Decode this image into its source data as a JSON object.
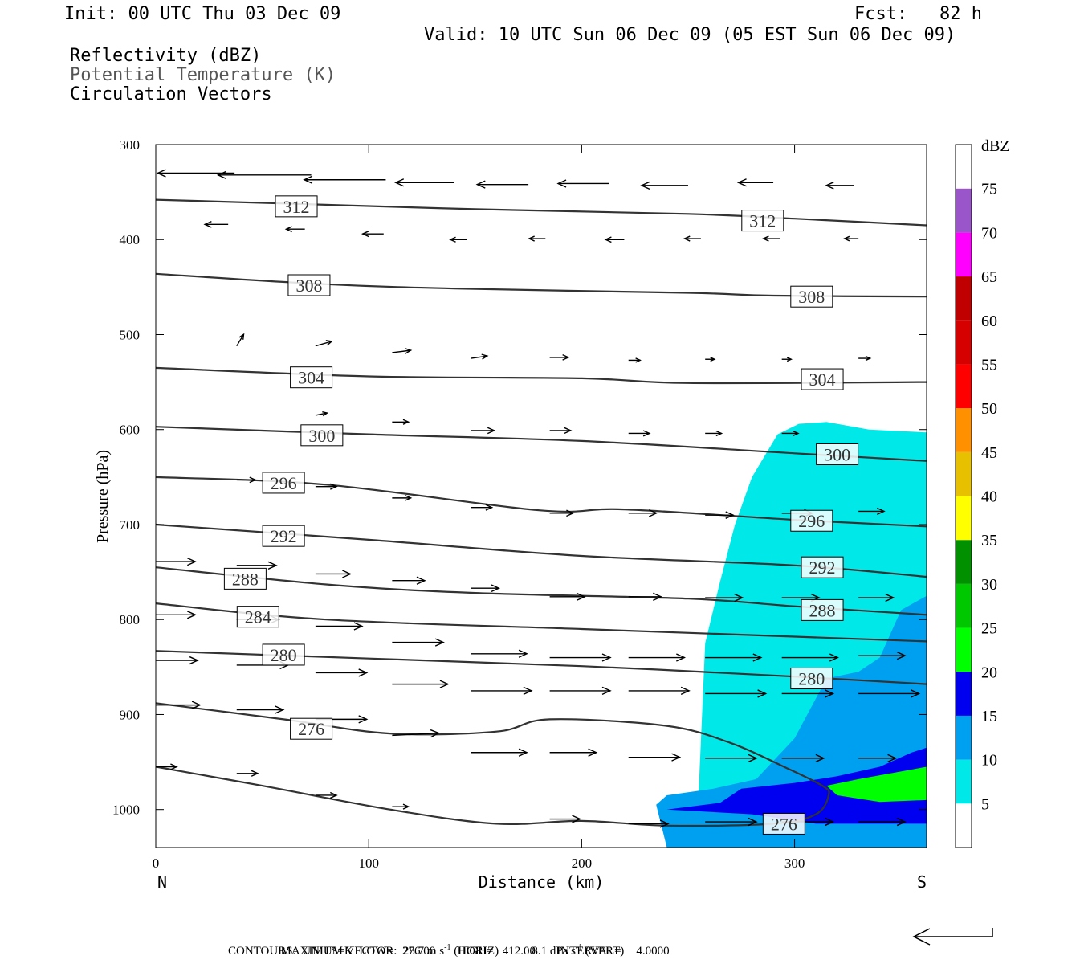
{
  "header": {
    "init": "Init: 00 UTC Thu 03 Dec 09",
    "fcst": "Fcst:   82 h",
    "valid": "Valid: 10 UTC Sun 06 Dec 09 (05 EST Sun 06 Dec 09)",
    "fields": [
      "Reflectivity (dBZ)",
      "Potential Temperature (K)",
      "Circulation Vectors"
    ]
  },
  "footer": {
    "max_vector_label": "MAXIMUM VECTOR:",
    "horiz": "28.7 m s",
    "horiz_unit": "-1",
    "horiz_tag": "(HORIZ)",
    "vert": "8.1 dPa s",
    "vert_unit": "-1",
    "vert_tag": "(VERT)",
    "contours": "CONTOURS:  UNITS=K  LOW=   276.00       HIGH=   412.00       INTERVAL=     4.0000"
  },
  "chart_data": {
    "type": "contour",
    "xlabel": "Distance (km)",
    "ylabel": "Pressure (hPa)",
    "x_left_label": "N",
    "x_right_label": "S",
    "xlim": [
      0,
      362
    ],
    "ylim": [
      1040,
      300
    ],
    "x_ticks": [
      0,
      100,
      200,
      300
    ],
    "y_ticks": [
      300,
      400,
      500,
      600,
      700,
      800,
      900,
      1000
    ],
    "colorbar": {
      "unit": "dBZ",
      "levels": [
        5,
        10,
        15,
        20,
        25,
        30,
        35,
        40,
        45,
        50,
        55,
        60,
        65,
        70,
        75
      ],
      "colors": [
        "#ffffff",
        "#00e8e8",
        "#00a0f0",
        "#0000f0",
        "#00ff00",
        "#00c800",
        "#009000",
        "#ffff00",
        "#e7c000",
        "#ff9000",
        "#ff0000",
        "#d60000",
        "#c00000",
        "#ff00ff",
        "#9955c9",
        "#ffffff"
      ]
    },
    "theta_contours": [
      {
        "value": 312,
        "label": "312",
        "points": [
          [
            0,
            358
          ],
          [
            60,
            362
          ],
          [
            150,
            368
          ],
          [
            250,
            373
          ],
          [
            300,
            378
          ],
          [
            362,
            385
          ]
        ],
        "labels_at": [
          [
            66,
            365
          ],
          [
            285,
            380
          ]
        ]
      },
      {
        "value": 308,
        "label": "308",
        "points": [
          [
            0,
            436
          ],
          [
            80,
            447
          ],
          [
            150,
            452
          ],
          [
            250,
            456
          ],
          [
            290,
            459
          ],
          [
            362,
            460
          ]
        ],
        "labels_at": [
          [
            72,
            448
          ],
          [
            308,
            460
          ]
        ]
      },
      {
        "value": 304,
        "label": "304",
        "points": [
          [
            0,
            535
          ],
          [
            100,
            544
          ],
          [
            200,
            546
          ],
          [
            250,
            551
          ],
          [
            362,
            550
          ]
        ],
        "labels_at": [
          [
            73,
            545
          ],
          [
            313,
            547
          ]
        ]
      },
      {
        "value": 300,
        "label": "300",
        "points": [
          [
            0,
            597
          ],
          [
            100,
            605
          ],
          [
            200,
            612
          ],
          [
            300,
            625
          ],
          [
            362,
            633
          ]
        ],
        "labels_at": [
          [
            78,
            606
          ],
          [
            320,
            626
          ]
        ]
      },
      {
        "value": 296,
        "label": "296",
        "points": [
          [
            0,
            650
          ],
          [
            80,
            658
          ],
          [
            180,
            685
          ],
          [
            220,
            684
          ],
          [
            300,
            695
          ],
          [
            362,
            702
          ]
        ],
        "labels_at": [
          [
            60,
            656
          ],
          [
            308,
            696
          ]
        ]
      },
      {
        "value": 292,
        "label": "292",
        "points": [
          [
            0,
            700
          ],
          [
            100,
            716
          ],
          [
            200,
            733
          ],
          [
            300,
            743
          ],
          [
            362,
            755
          ]
        ],
        "labels_at": [
          [
            60,
            712
          ],
          [
            313,
            745
          ]
        ]
      },
      {
        "value": 288,
        "label": "288",
        "points": [
          [
            0,
            745
          ],
          [
            80,
            763
          ],
          [
            150,
            772
          ],
          [
            250,
            778
          ],
          [
            300,
            786
          ],
          [
            362,
            795
          ]
        ],
        "labels_at": [
          [
            42,
            757
          ],
          [
            313,
            790
          ]
        ]
      },
      {
        "value": 284,
        "label": "284",
        "points": [
          [
            0,
            783
          ],
          [
            80,
            800
          ],
          [
            200,
            810
          ],
          [
            300,
            818
          ],
          [
            362,
            823
          ]
        ],
        "labels_at": [
          [
            48,
            797
          ]
        ]
      },
      {
        "value": 280,
        "label": "280",
        "points": [
          [
            0,
            833
          ],
          [
            100,
            841
          ],
          [
            200,
            849
          ],
          [
            300,
            860
          ],
          [
            362,
            868
          ]
        ],
        "labels_at": [
          [
            60,
            837
          ],
          [
            308,
            862
          ]
        ]
      },
      {
        "value": 276,
        "label": "276",
        "points": [
          [
            0,
            888
          ],
          [
            60,
            905
          ],
          [
            110,
            920
          ],
          [
            160,
            918
          ],
          [
            185,
            905
          ],
          [
            240,
            912
          ],
          [
            270,
            930
          ],
          [
            295,
            955
          ],
          [
            313,
            975
          ],
          [
            316,
            985
          ],
          [
            310,
            1005
          ],
          [
            290,
            1015
          ],
          [
            240,
            1017
          ],
          [
            200,
            1012
          ],
          [
            160,
            1015
          ],
          [
            110,
            1000
          ],
          [
            50,
            975
          ],
          [
            0,
            955
          ]
        ],
        "labels_at": [
          [
            73,
            915
          ],
          [
            295,
            1015
          ]
        ]
      }
    ],
    "reflectivity_regions": [
      {
        "dbz": 5,
        "points": [
          [
            255,
            980
          ],
          [
            258,
            825
          ],
          [
            265,
            760
          ],
          [
            272,
            700
          ],
          [
            280,
            650
          ],
          [
            292,
            605
          ],
          [
            302,
            594
          ],
          [
            315,
            592
          ],
          [
            335,
            600
          ],
          [
            362,
            603
          ],
          [
            362,
            1040
          ],
          [
            250,
            1040
          ],
          [
            250,
            1000
          ],
          [
            246,
            990
          ]
        ]
      },
      {
        "dbz": 10,
        "points": [
          [
            240,
            985
          ],
          [
            262,
            978
          ],
          [
            282,
            968
          ],
          [
            300,
            925
          ],
          [
            315,
            862
          ],
          [
            330,
            855
          ],
          [
            340,
            840
          ],
          [
            350,
            790
          ],
          [
            362,
            775
          ],
          [
            362,
            1040
          ],
          [
            240,
            1040
          ],
          [
            235,
            995
          ]
        ]
      },
      {
        "dbz": 15,
        "points": [
          [
            265,
            993
          ],
          [
            275,
            978
          ],
          [
            300,
            972
          ],
          [
            320,
            965
          ],
          [
            340,
            955
          ],
          [
            355,
            940
          ],
          [
            362,
            935
          ],
          [
            362,
            1015
          ],
          [
            310,
            1015
          ],
          [
            280,
            1005
          ],
          [
            240,
            1000
          ]
        ]
      },
      {
        "dbz": 20,
        "points": [
          [
            315,
            975
          ],
          [
            330,
            968
          ],
          [
            345,
            962
          ],
          [
            362,
            955
          ],
          [
            362,
            990
          ],
          [
            340,
            992
          ],
          [
            320,
            985
          ]
        ]
      }
    ],
    "vectors": [
      {
        "x": 37,
        "p": 330,
        "u": -33,
        "w": 0
      },
      {
        "x": 73,
        "p": 332,
        "u": -40,
        "w": 0
      },
      {
        "x": 108,
        "p": 337,
        "u": -35,
        "w": 0
      },
      {
        "x": 140,
        "p": 340,
        "u": -25,
        "w": 0
      },
      {
        "x": 175,
        "p": 342,
        "u": -22,
        "w": 0
      },
      {
        "x": 213,
        "p": 341,
        "u": -22,
        "w": 0
      },
      {
        "x": 250,
        "p": 343,
        "u": -20,
        "w": 0
      },
      {
        "x": 290,
        "p": 340,
        "u": -15,
        "w": 0
      },
      {
        "x": 328,
        "p": 343,
        "u": -12,
        "w": 0
      },
      {
        "x": 34,
        "p": 384,
        "u": -10,
        "w": 0
      },
      {
        "x": 70,
        "p": 389,
        "u": -8,
        "w": 0
      },
      {
        "x": 107,
        "p": 394,
        "u": -9,
        "w": 0
      },
      {
        "x": 146,
        "p": 400,
        "u": -7,
        "w": 0
      },
      {
        "x": 183,
        "p": 399,
        "u": -7,
        "w": 0
      },
      {
        "x": 220,
        "p": 400,
        "u": -8,
        "w": 0
      },
      {
        "x": 256,
        "p": 399,
        "u": -7,
        "w": 0
      },
      {
        "x": 293,
        "p": 399,
        "u": -7,
        "w": 0
      },
      {
        "x": 330,
        "p": 399,
        "u": -6,
        "w": 0
      },
      {
        "x": 38,
        "p": 512,
        "u": 3,
        "w": -5
      },
      {
        "x": 75,
        "p": 512,
        "u": 7,
        "w": -2
      },
      {
        "x": 111,
        "p": 519,
        "u": 8,
        "w": -1
      },
      {
        "x": 148,
        "p": 525,
        "u": 7,
        "w": -1
      },
      {
        "x": 185,
        "p": 524,
        "u": 8,
        "w": 0
      },
      {
        "x": 222,
        "p": 527,
        "u": 5,
        "w": 0
      },
      {
        "x": 258,
        "p": 526,
        "u": 4,
        "w": 0
      },
      {
        "x": 294,
        "p": 526,
        "u": 4,
        "w": 0
      },
      {
        "x": 330,
        "p": 525,
        "u": 5,
        "w": 0
      },
      {
        "x": 75,
        "p": 585,
        "u": 5,
        "w": -1
      },
      {
        "x": 111,
        "p": 592,
        "u": 7,
        "w": 0
      },
      {
        "x": 148,
        "p": 601,
        "u": 10,
        "w": 0
      },
      {
        "x": 185,
        "p": 601,
        "u": 9,
        "w": 0
      },
      {
        "x": 222,
        "p": 604,
        "u": 9,
        "w": 0
      },
      {
        "x": 258,
        "p": 604,
        "u": 7,
        "w": 0
      },
      {
        "x": 294,
        "p": 604,
        "u": 7,
        "w": 0
      },
      {
        "x": 38,
        "p": 653,
        "u": 8,
        "w": 0
      },
      {
        "x": 75,
        "p": 660,
        "u": 9,
        "w": 0
      },
      {
        "x": 111,
        "p": 672,
        "u": 8,
        "w": 0
      },
      {
        "x": 148,
        "p": 682,
        "u": 9,
        "w": 0
      },
      {
        "x": 185,
        "p": 688,
        "u": 10,
        "w": 0
      },
      {
        "x": 222,
        "p": 688,
        "u": 12,
        "w": 0
      },
      {
        "x": 258,
        "p": 690,
        "u": 12,
        "w": 0
      },
      {
        "x": 294,
        "p": 688,
        "u": 13,
        "w": 0
      },
      {
        "x": 330,
        "p": 686,
        "u": 11,
        "w": 0
      },
      {
        "x": 0,
        "p": 739,
        "u": 17,
        "w": 0
      },
      {
        "x": 38,
        "p": 743,
        "u": 17,
        "w": 0
      },
      {
        "x": 75,
        "p": 752,
        "u": 15,
        "w": 0
      },
      {
        "x": 111,
        "p": 759,
        "u": 14,
        "w": 0
      },
      {
        "x": 148,
        "p": 767,
        "u": 12,
        "w": 0
      },
      {
        "x": 185,
        "p": 776,
        "u": 15,
        "w": 0
      },
      {
        "x": 222,
        "p": 776,
        "u": 14,
        "w": 0
      },
      {
        "x": 258,
        "p": 777,
        "u": 16,
        "w": 0
      },
      {
        "x": 294,
        "p": 777,
        "u": 16,
        "w": 0
      },
      {
        "x": 330,
        "p": 777,
        "u": 15,
        "w": 0
      },
      {
        "x": 0,
        "p": 795,
        "u": 17,
        "w": 0
      },
      {
        "x": 38,
        "p": 800,
        "u": 18,
        "w": 0
      },
      {
        "x": 75,
        "p": 807,
        "u": 20,
        "w": 0
      },
      {
        "x": 111,
        "p": 824,
        "u": 22,
        "w": 0
      },
      {
        "x": 148,
        "p": 836,
        "u": 24,
        "w": 0
      },
      {
        "x": 185,
        "p": 840,
        "u": 26,
        "w": 0
      },
      {
        "x": 222,
        "p": 840,
        "u": 24,
        "w": 0
      },
      {
        "x": 258,
        "p": 840,
        "u": 24,
        "w": 0
      },
      {
        "x": 294,
        "p": 840,
        "u": 24,
        "w": 0
      },
      {
        "x": 330,
        "p": 838,
        "u": 20,
        "w": 0
      },
      {
        "x": 0,
        "p": 843,
        "u": 18,
        "w": 0
      },
      {
        "x": 38,
        "p": 848,
        "u": 22,
        "w": 0
      },
      {
        "x": 75,
        "p": 856,
        "u": 22,
        "w": 0
      },
      {
        "x": 111,
        "p": 868,
        "u": 24,
        "w": 0
      },
      {
        "x": 148,
        "p": 875,
        "u": 26,
        "w": 0
      },
      {
        "x": 185,
        "p": 875,
        "u": 26,
        "w": 0
      },
      {
        "x": 222,
        "p": 875,
        "u": 26,
        "w": 0
      },
      {
        "x": 258,
        "p": 878,
        "u": 26,
        "w": 0
      },
      {
        "x": 294,
        "p": 878,
        "u": 22,
        "w": 0
      },
      {
        "x": 330,
        "p": 878,
        "u": 26,
        "w": 0
      },
      {
        "x": 0,
        "p": 890,
        "u": 19,
        "w": 0
      },
      {
        "x": 38,
        "p": 895,
        "u": 20,
        "w": 0
      },
      {
        "x": 75,
        "p": 905,
        "u": 22,
        "w": 0
      },
      {
        "x": 111,
        "p": 922,
        "u": 20,
        "w": -1
      },
      {
        "x": 148,
        "p": 940,
        "u": 24,
        "w": 0
      },
      {
        "x": 185,
        "p": 940,
        "u": 20,
        "w": 0
      },
      {
        "x": 222,
        "p": 945,
        "u": 22,
        "w": 0
      },
      {
        "x": 258,
        "p": 946,
        "u": 22,
        "w": 0
      },
      {
        "x": 294,
        "p": 946,
        "u": 18,
        "w": 0
      },
      {
        "x": 330,
        "p": 946,
        "u": 16,
        "w": 0
      },
      {
        "x": 0,
        "p": 955,
        "u": 9,
        "w": 0
      },
      {
        "x": 38,
        "p": 962,
        "u": 9,
        "w": 0
      },
      {
        "x": 75,
        "p": 985,
        "u": 9,
        "w": 0
      },
      {
        "x": 111,
        "p": 997,
        "u": 7,
        "w": 0
      },
      {
        "x": 185,
        "p": 1010,
        "u": 13,
        "w": 0
      },
      {
        "x": 222,
        "p": 1015,
        "u": 17,
        "w": 0
      },
      {
        "x": 258,
        "p": 1013,
        "u": 22,
        "w": 0
      },
      {
        "x": 294,
        "p": 1013,
        "u": 22,
        "w": 0
      },
      {
        "x": 330,
        "p": 1013,
        "u": 20,
        "w": 0
      }
    ]
  }
}
